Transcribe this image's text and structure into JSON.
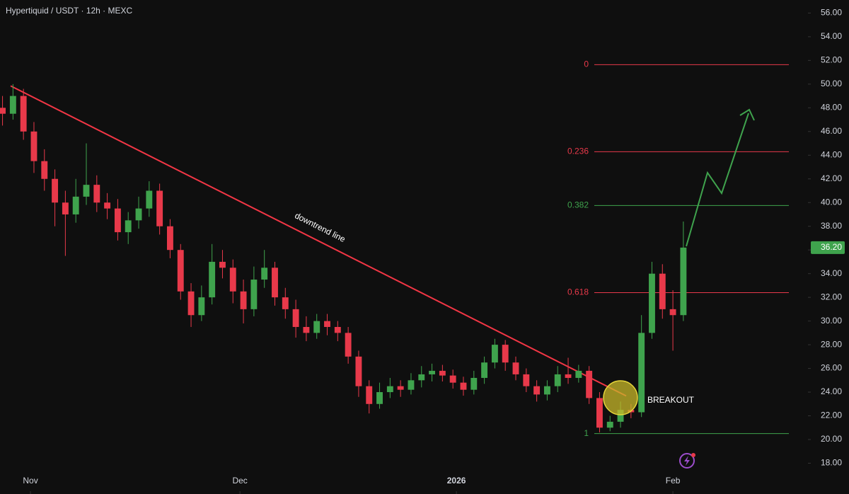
{
  "chart_data": {
    "type": "candlestick",
    "title": "Hypertiquid / USDT · 12h · MEXC",
    "up_color": "#3fa34d",
    "down_color": "#e8394a",
    "xlim": [
      -4.36,
      111.14
    ],
    "xticks": [
      {
        "value": 0,
        "label": "Nov"
      },
      {
        "value": 30,
        "label": "Dec"
      },
      {
        "value": 61,
        "label": "2026"
      },
      {
        "value": 92,
        "label": "Feb"
      }
    ],
    "ylim": [
      15.4,
      57.1
    ],
    "yticks": [
      {
        "value": 18,
        "label": "18.00"
      },
      {
        "value": 20,
        "label": "20.00"
      },
      {
        "value": 22,
        "label": "22.00"
      },
      {
        "value": 24,
        "label": "24.00"
      },
      {
        "value": 26,
        "label": "26.00"
      },
      {
        "value": 28,
        "label": "28.00"
      },
      {
        "value": 30,
        "label": "30.00"
      },
      {
        "value": 32,
        "label": "32.00"
      },
      {
        "value": 34,
        "label": "34.00"
      },
      {
        "value": 36,
        "label": "36.00"
      },
      {
        "value": 38,
        "label": "38.00"
      },
      {
        "value": 40,
        "label": "40.00"
      },
      {
        "value": 42,
        "label": "42.00"
      },
      {
        "value": 44,
        "label": "44.00"
      },
      {
        "value": 46,
        "label": "46.00"
      },
      {
        "value": 48,
        "label": "48.00"
      },
      {
        "value": 50,
        "label": "50.00"
      },
      {
        "value": 52,
        "label": "52.00"
      },
      {
        "value": 54,
        "label": "54.00"
      },
      {
        "value": 56,
        "label": "56.00"
      }
    ],
    "last_price": {
      "value": 36.2,
      "label": "36.20"
    },
    "x": [
      -4,
      -2.5,
      -1,
      0.5,
      2,
      3.5,
      5,
      6.5,
      8,
      9.5,
      11,
      12.5,
      14,
      15.5,
      17,
      18.5,
      20,
      21.5,
      23,
      24.5,
      26,
      27.5,
      29,
      30.5,
      32,
      33.5,
      35,
      36.5,
      38,
      39.5,
      41,
      42.5,
      44,
      45.5,
      47,
      48.5,
      50,
      51.5,
      53,
      54.5,
      56,
      57.5,
      59,
      60.5,
      62,
      63.5,
      65,
      66.5,
      68,
      69.5,
      71,
      72.5,
      74,
      75.5,
      77,
      78.5,
      80,
      81.5,
      83,
      84.5,
      86,
      87.5,
      89,
      90.5,
      92,
      93.5
    ],
    "open": [
      48,
      47.5,
      49,
      46,
      43.5,
      42,
      40,
      39,
      40.5,
      41.5,
      40,
      39.5,
      37.5,
      38.5,
      39.5,
      41,
      38,
      36,
      32.5,
      30.5,
      32,
      35,
      34.5,
      32.5,
      31,
      33.5,
      34.5,
      32,
      31,
      29.5,
      29,
      30,
      29.5,
      29,
      27,
      24.5,
      23,
      24,
      24.5,
      24.2,
      25,
      25.5,
      25.8,
      25.4,
      24.8,
      24.2,
      25.2,
      26.5,
      28,
      26.5,
      25.5,
      24.5,
      23.8,
      24.5,
      25.5,
      25.2,
      25.8,
      23.5,
      21,
      21.5,
      22.5,
      22.3,
      29,
      34,
      31,
      30.5
    ],
    "high": [
      49,
      50,
      49.6,
      46.8,
      44.5,
      42.8,
      41,
      42,
      45,
      42.3,
      40.8,
      40.3,
      39.2,
      40.5,
      41.8,
      41.6,
      38.6,
      36.5,
      33.2,
      33,
      36.5,
      36,
      35.2,
      33.5,
      34.6,
      36,
      35,
      32.8,
      31.8,
      30.4,
      30.6,
      30.6,
      30,
      29.5,
      27.5,
      25,
      24.8,
      25.2,
      25,
      25.6,
      26.2,
      26.4,
      26.3,
      25.9,
      25.3,
      25.8,
      27,
      28.5,
      28.4,
      27,
      26,
      25,
      25,
      26.2,
      26.9,
      26.3,
      26.2,
      24,
      22,
      23.2,
      23,
      30.5,
      35,
      34.8,
      32.6,
      38.4
    ],
    "low": [
      46.5,
      47,
      45.3,
      42.5,
      41,
      38,
      35.5,
      38.3,
      39.8,
      39.2,
      38.6,
      36.8,
      36.5,
      37.8,
      38.8,
      37.3,
      35.3,
      31.8,
      29.5,
      30,
      31.4,
      33.6,
      31.5,
      29.8,
      30.4,
      32.8,
      31.3,
      30.2,
      28.6,
      28.3,
      28.5,
      28.8,
      28.3,
      26.4,
      23.6,
      22.2,
      22.6,
      23.5,
      23.6,
      23.8,
      24.4,
      24.9,
      24.9,
      24.3,
      23.7,
      23.8,
      24.7,
      26,
      25.8,
      25,
      24,
      23.2,
      23.3,
      24,
      24.7,
      24.8,
      23,
      20.6,
      20.7,
      21,
      21.8,
      21.9,
      28.5,
      30.2,
      27.5,
      30
    ],
    "close": [
      47.5,
      49,
      46,
      43.5,
      42,
      40,
      39,
      40.5,
      41.5,
      40,
      39.5,
      37.5,
      38.5,
      39.5,
      41,
      38,
      36,
      32.5,
      30.5,
      32,
      35,
      34.5,
      32.5,
      31,
      33.5,
      34.5,
      32,
      31,
      29.5,
      29,
      30,
      29.5,
      29,
      27,
      24.5,
      23,
      24,
      24.5,
      24.2,
      25,
      25.5,
      25.8,
      25.4,
      24.8,
      24.2,
      25.2,
      26.5,
      28,
      26.5,
      25.5,
      24.5,
      23.8,
      24.5,
      25.5,
      25.2,
      25.8,
      23.5,
      21,
      21.5,
      22.5,
      22.3,
      29,
      34,
      31,
      30.5,
      36.2
    ],
    "fib_levels": [
      {
        "level": 0,
        "value": 51.64,
        "color": "#e8394a"
      },
      {
        "level": 0.236,
        "value": 44.29,
        "color": "#e8394a"
      },
      {
        "level": 0.382,
        "value": 39.75,
        "color": "#3fa34d"
      },
      {
        "level": 0.618,
        "value": 32.4,
        "color": "#e8394a"
      },
      {
        "level": 1,
        "value": 20.5,
        "color": "#3fa34d"
      }
    ],
    "trendline": {
      "label": "downtrend line",
      "x": [
        -2.84,
        85.3
      ],
      "y": [
        49.85,
        23.68
      ],
      "color": "#f23645"
    },
    "annotation": "BREAKOUT"
  }
}
